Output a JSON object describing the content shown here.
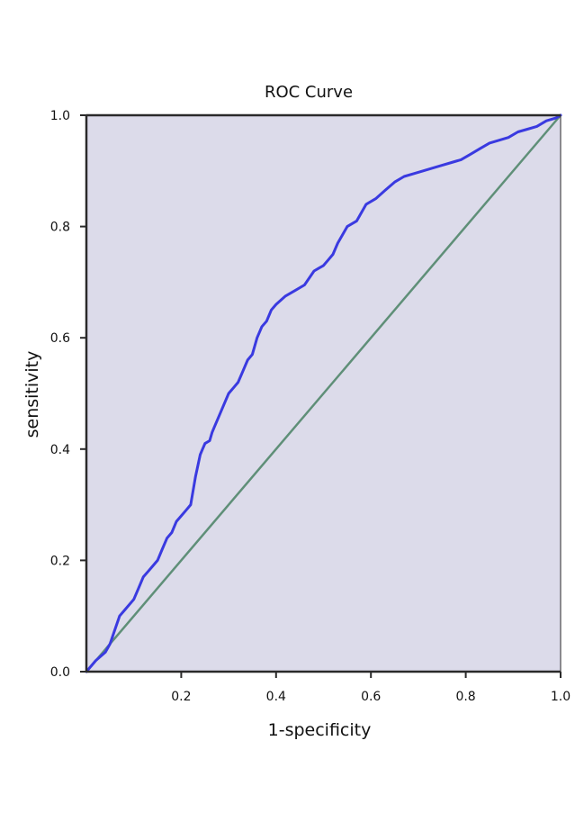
{
  "chart_data": {
    "type": "line",
    "title": "ROC Curve",
    "xlabel": "1-specificity",
    "ylabel": "sensitivity",
    "xlim": [
      0,
      1
    ],
    "ylim": [
      0,
      1
    ],
    "x_ticks": [
      0.2,
      0.4,
      0.6,
      0.8,
      1.0
    ],
    "x_tick_labels": [
      "0.2",
      "0.4",
      "0.6",
      "0.8",
      "1.0"
    ],
    "y_ticks": [
      0.0,
      0.2,
      0.4,
      0.6,
      0.8,
      1.0
    ],
    "y_tick_labels": [
      "0.0",
      "0.2",
      "0.4",
      "0.6",
      "0.8",
      "1.0"
    ],
    "grid": false,
    "legend": "none",
    "plot_background": "#dcdbea",
    "series": [
      {
        "color": "#3a3ae0",
        "x": [
          0.0,
          0.02,
          0.04,
          0.05,
          0.06,
          0.07,
          0.08,
          0.1,
          0.11,
          0.12,
          0.13,
          0.14,
          0.15,
          0.16,
          0.17,
          0.18,
          0.19,
          0.2,
          0.21,
          0.22,
          0.23,
          0.24,
          0.245,
          0.25,
          0.26,
          0.265,
          0.27,
          0.28,
          0.29,
          0.3,
          0.31,
          0.32,
          0.33,
          0.34,
          0.35,
          0.36,
          0.37,
          0.38,
          0.39,
          0.4,
          0.42,
          0.44,
          0.46,
          0.48,
          0.49,
          0.5,
          0.51,
          0.52,
          0.53,
          0.54,
          0.55,
          0.57,
          0.59,
          0.61,
          0.63,
          0.65,
          0.67,
          0.69,
          0.71,
          0.73,
          0.75,
          0.77,
          0.79,
          0.81,
          0.83,
          0.85,
          0.87,
          0.89,
          0.91,
          0.93,
          0.95,
          0.97,
          0.99,
          1.0
        ],
        "y": [
          0.0,
          0.02,
          0.035,
          0.05,
          0.075,
          0.1,
          0.11,
          0.13,
          0.15,
          0.17,
          0.18,
          0.19,
          0.2,
          0.22,
          0.24,
          0.25,
          0.27,
          0.28,
          0.29,
          0.3,
          0.35,
          0.39,
          0.4,
          0.41,
          0.415,
          0.43,
          0.44,
          0.46,
          0.48,
          0.5,
          0.51,
          0.52,
          0.54,
          0.56,
          0.57,
          0.6,
          0.62,
          0.63,
          0.65,
          0.66,
          0.675,
          0.685,
          0.695,
          0.72,
          0.725,
          0.73,
          0.74,
          0.75,
          0.77,
          0.785,
          0.8,
          0.81,
          0.84,
          0.85,
          0.865,
          0.88,
          0.89,
          0.895,
          0.9,
          0.905,
          0.91,
          0.915,
          0.92,
          0.93,
          0.94,
          0.95,
          0.955,
          0.96,
          0.97,
          0.975,
          0.98,
          0.99,
          0.995,
          1.0
        ]
      },
      {
        "color": "#5f8f78",
        "x": [
          0,
          1
        ],
        "y": [
          0,
          1
        ]
      }
    ]
  }
}
